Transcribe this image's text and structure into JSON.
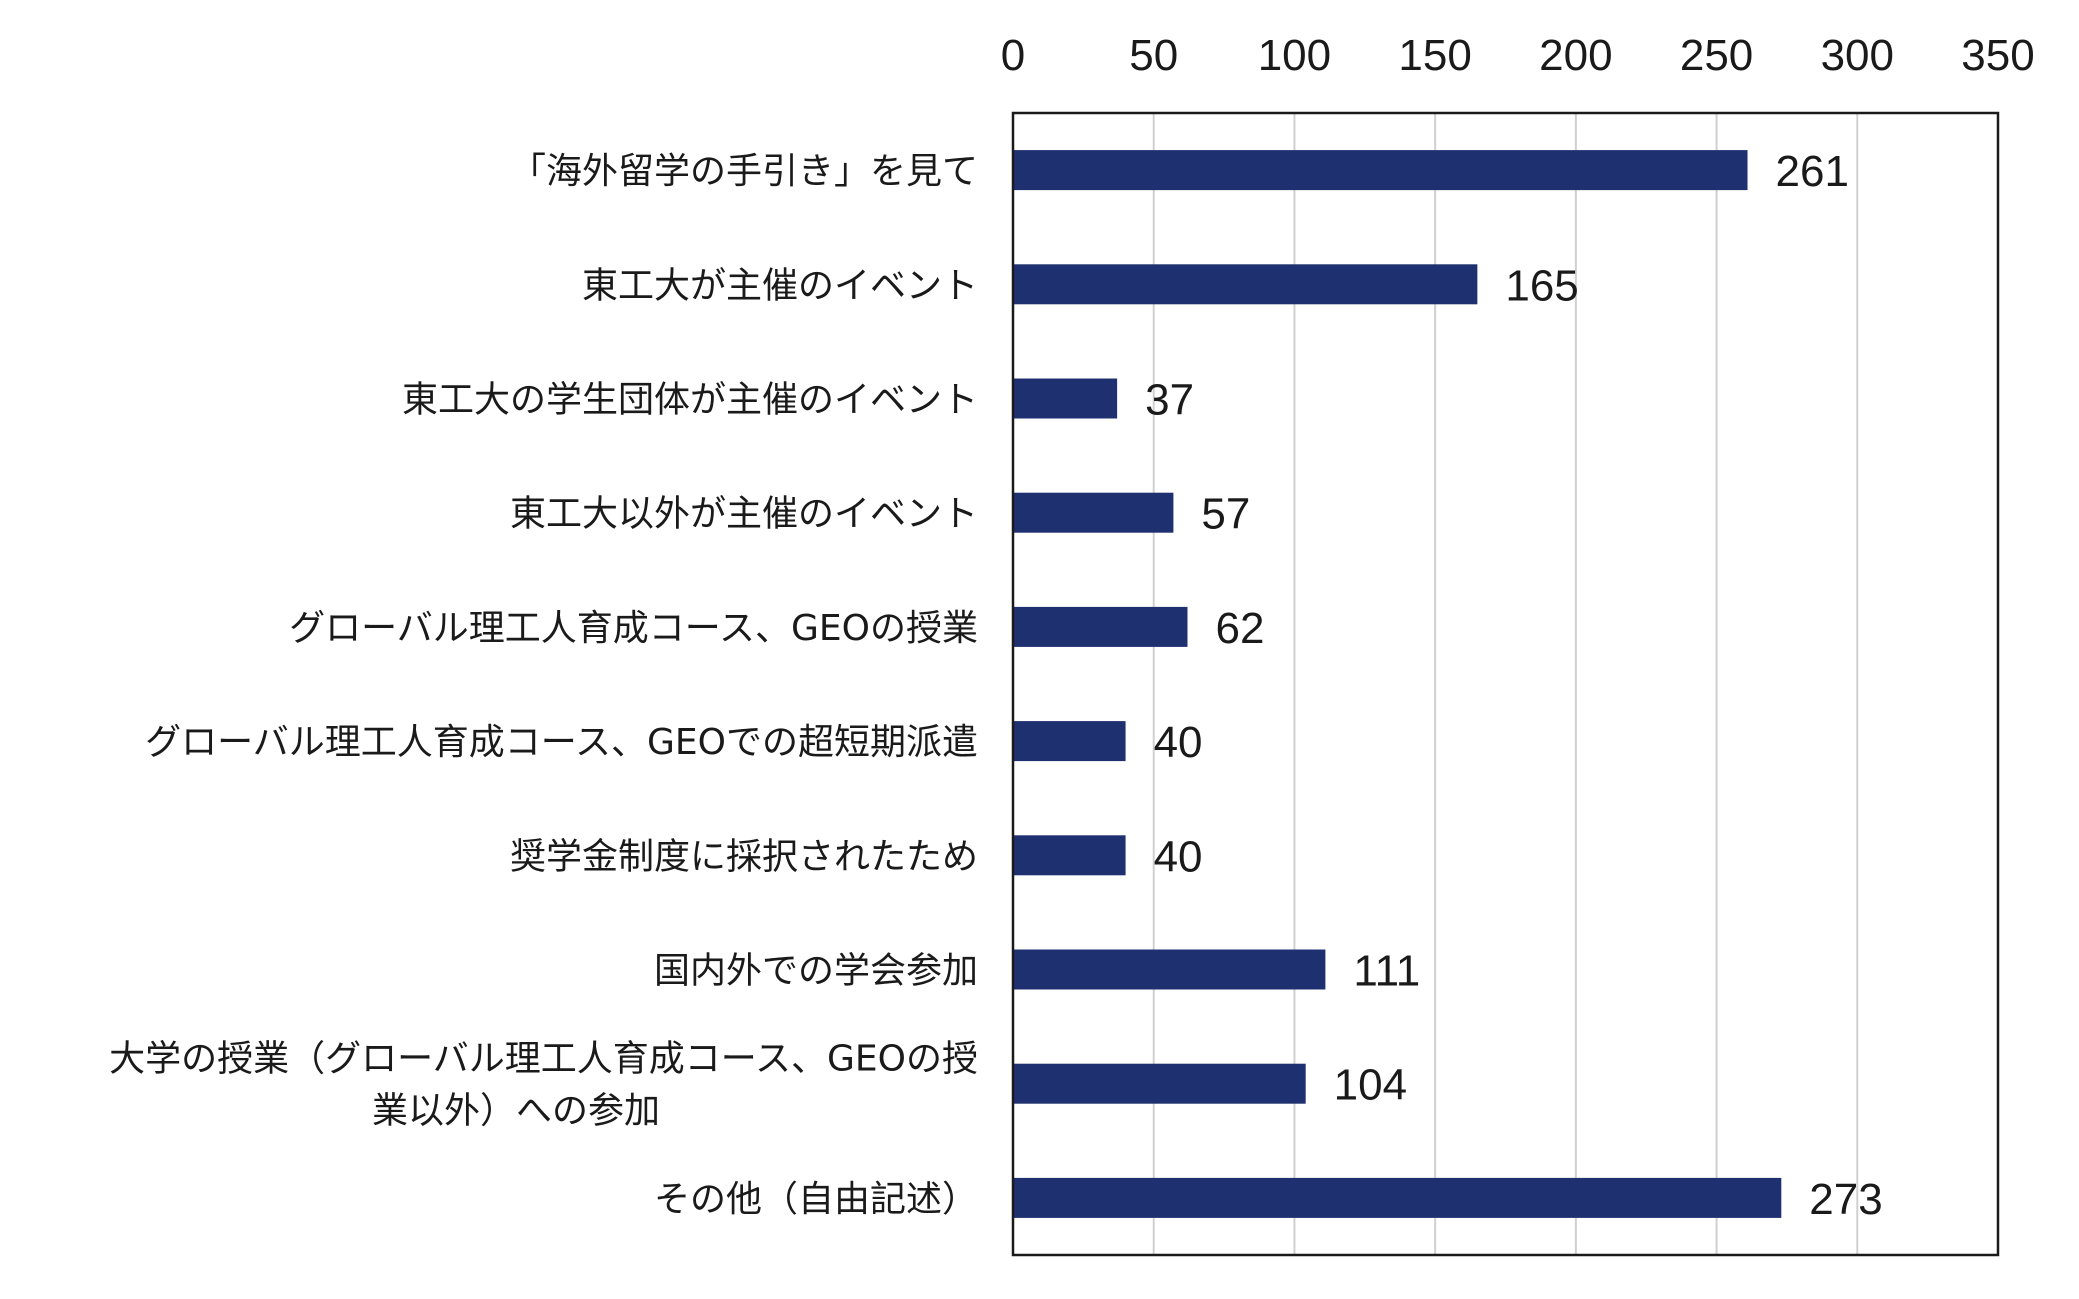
{
  "colors": {
    "bar": "#1f3070",
    "grid": "#d0d0d0",
    "frame": "#1a1a1a",
    "text": "#1a1a1a"
  },
  "chart_data": {
    "type": "bar",
    "orientation": "horizontal",
    "title": "",
    "xlabel": "",
    "ylabel": "",
    "xlim": [
      0,
      350
    ],
    "x_ticks": [
      0,
      50,
      100,
      150,
      200,
      250,
      300,
      350
    ],
    "x_axis_position": "top",
    "grid": true,
    "legend": "none",
    "categories": [
      [
        "「海外留学の手引き」を見て"
      ],
      [
        "東工大が主催のイベント"
      ],
      [
        "東工大の学生団体が主催のイベント"
      ],
      [
        "東工大以外が主催のイベント"
      ],
      [
        "グローバル理工人育成コース、GEOの授業"
      ],
      [
        "グローバル理工人育成コース、GEOでの超短期派遣"
      ],
      [
        "奨学金制度に採択されたため"
      ],
      [
        "国内外での学会参加"
      ],
      [
        "大学の授業（グローバル理工人育成コース、GEOの授",
        "業以外）への参加"
      ],
      [
        "その他（自由記述）"
      ]
    ],
    "values": [
      261,
      165,
      37,
      57,
      62,
      40,
      40,
      111,
      104,
      273
    ],
    "value_labels": [
      "261",
      "165",
      "37",
      "57",
      "62",
      "40",
      "40",
      "111",
      "104",
      "273"
    ]
  }
}
